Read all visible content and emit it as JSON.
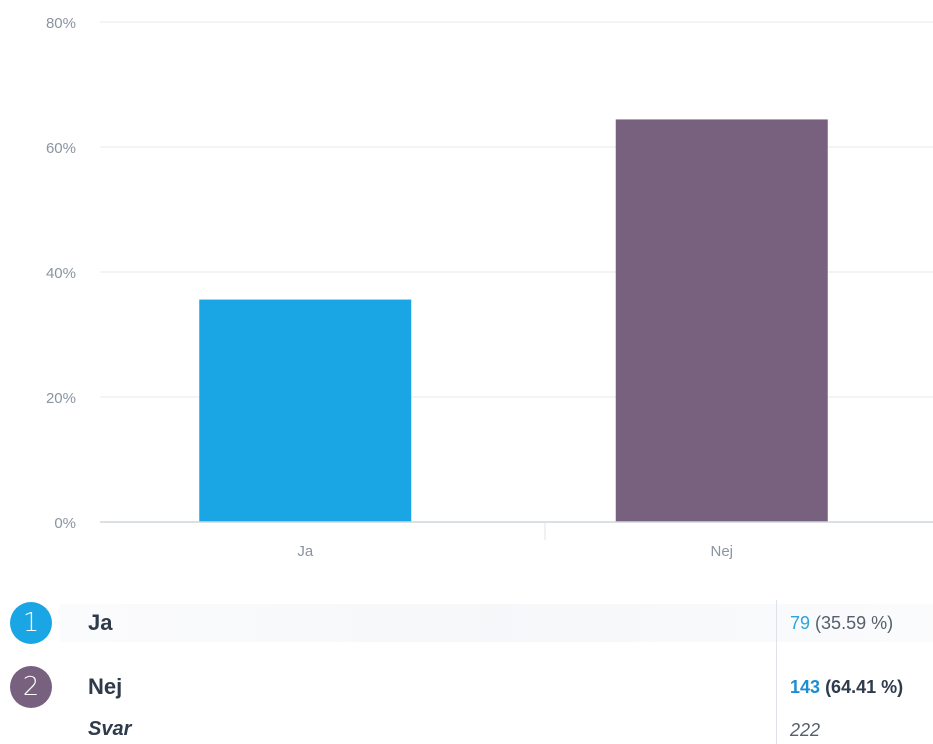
{
  "chart_data": {
    "type": "bar",
    "categories": [
      "Ja",
      "Nej"
    ],
    "values": [
      35.59,
      64.41
    ],
    "ylim": [
      0,
      80
    ],
    "yticks": [
      "0%",
      "20%",
      "40%",
      "60%",
      "80%"
    ],
    "ytick_values": [
      0,
      20,
      40,
      60,
      80
    ],
    "colors": [
      "#1aa6e4",
      "#78607f"
    ],
    "grid": true
  },
  "legend": {
    "items": [
      {
        "index": "1",
        "label": "Ja",
        "count": "79",
        "percent": "(35.59 %)",
        "color": "#1aa6e4"
      },
      {
        "index": "2",
        "label": "Nej",
        "count": "143",
        "percent": "(64.41 %)",
        "color": "#78607f"
      }
    ],
    "total_label": "Svar",
    "total_value": "222"
  }
}
